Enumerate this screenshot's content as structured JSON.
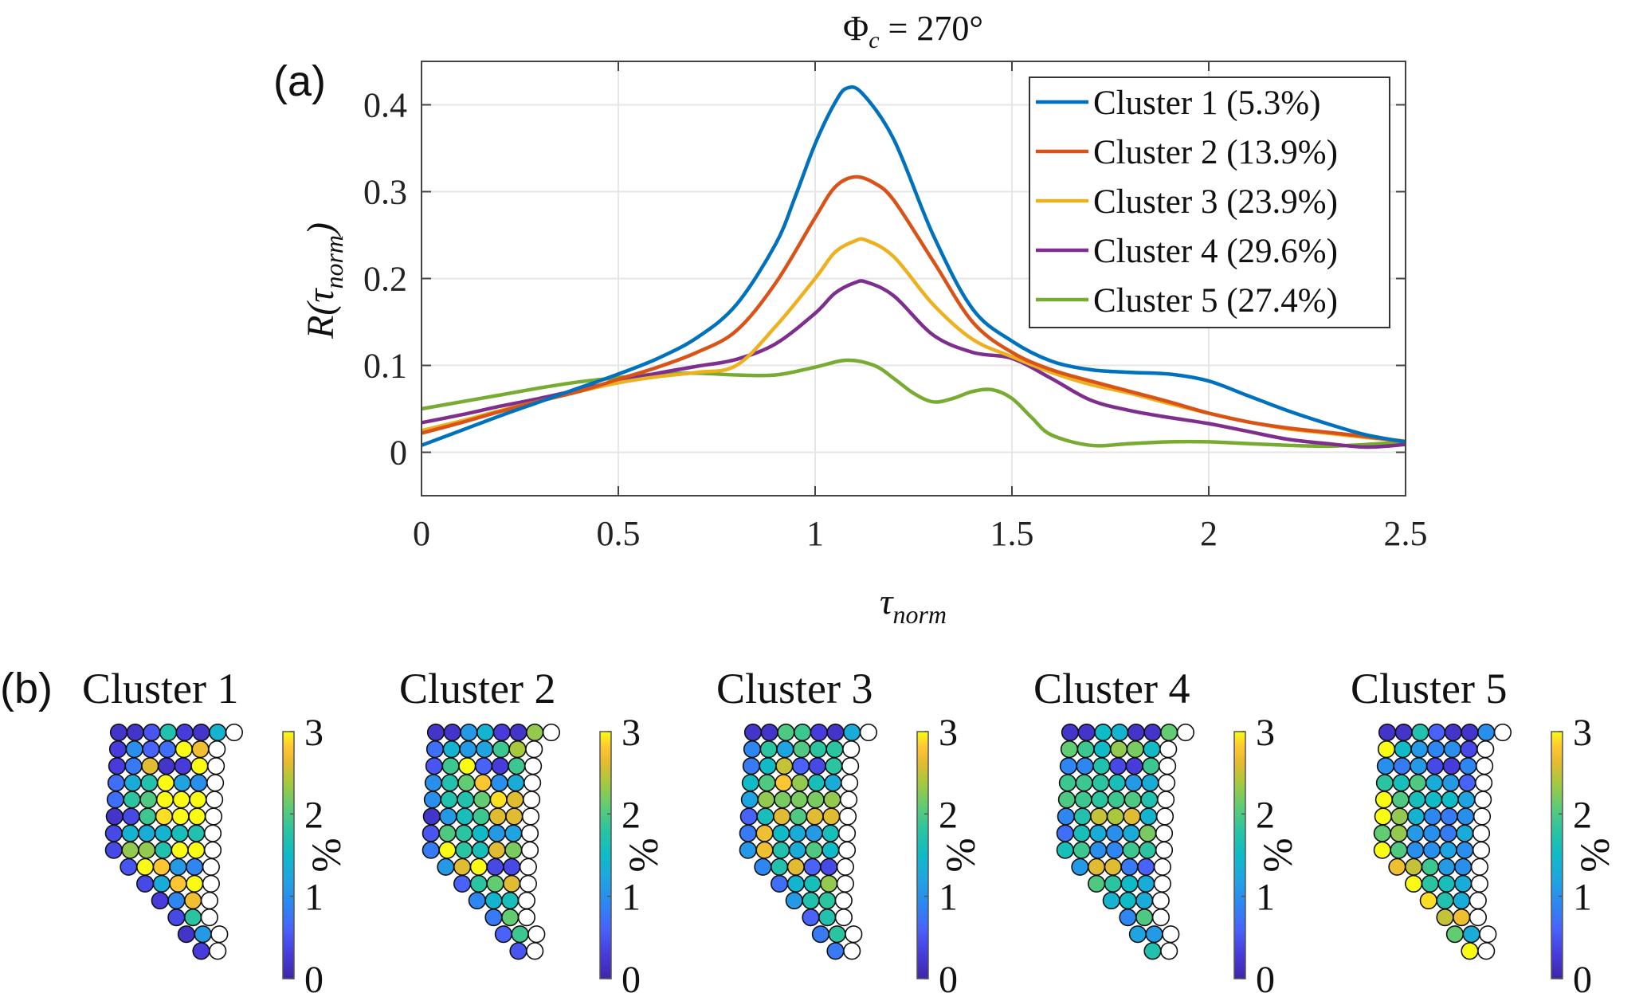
{
  "figure": {
    "panel_a_label": "(a)",
    "panel_b_label": "(b)"
  },
  "chart_data": [
    {
      "type": "line",
      "title": "Φc = 270°",
      "title_main": "Φ",
      "title_sub": "c",
      "title_rest": " = 270°",
      "xlabel": "τnorm",
      "xlabel_main": "τ",
      "xlabel_sub": "norm",
      "ylabel": "R(τnorm)",
      "ylabel_parts": {
        "pre": "R(",
        "tau": "τ",
        "sub": "norm",
        "post": ")"
      },
      "xlim": [
        0,
        2.5
      ],
      "ylim": [
        -0.05,
        0.45
      ],
      "xticks": [
        0,
        0.5,
        1,
        1.5,
        2,
        2.5
      ],
      "xtick_labels": [
        "0",
        "0.5",
        "1",
        "1.5",
        "2",
        "2.5"
      ],
      "yticks": [
        0,
        0.1,
        0.2,
        0.3,
        0.4
      ],
      "ytick_labels": [
        "0",
        "0.1",
        "0.2",
        "0.3",
        "0.4"
      ],
      "grid": true,
      "legend_position": "top-right",
      "series": [
        {
          "name": "Cluster 1 (5.3%)",
          "color": "#0072BD",
          "x": [
            0,
            0.1,
            0.2,
            0.3,
            0.4,
            0.5,
            0.6,
            0.7,
            0.8,
            0.9,
            0.95,
            1.0,
            1.05,
            1.08,
            1.12,
            1.2,
            1.3,
            1.4,
            1.5,
            1.6,
            1.7,
            1.8,
            1.9,
            2.0,
            2.1,
            2.2,
            2.3,
            2.4,
            2.5
          ],
          "y": [
            0.008,
            0.025,
            0.042,
            0.058,
            0.074,
            0.09,
            0.108,
            0.132,
            0.17,
            0.24,
            0.295,
            0.355,
            0.402,
            0.419,
            0.413,
            0.36,
            0.25,
            0.165,
            0.128,
            0.105,
            0.095,
            0.092,
            0.09,
            0.082,
            0.065,
            0.048,
            0.033,
            0.02,
            0.012
          ]
        },
        {
          "name": "Cluster 2 (13.9%)",
          "color": "#D95319",
          "x": [
            0,
            0.1,
            0.2,
            0.3,
            0.4,
            0.5,
            0.6,
            0.7,
            0.8,
            0.9,
            1.0,
            1.05,
            1.1,
            1.15,
            1.2,
            1.3,
            1.4,
            1.5,
            1.6,
            1.7,
            1.8,
            1.9,
            2.0,
            2.1,
            2.2,
            2.3,
            2.4,
            2.5
          ],
          "y": [
            0.022,
            0.034,
            0.047,
            0.059,
            0.07,
            0.084,
            0.098,
            0.115,
            0.14,
            0.195,
            0.27,
            0.305,
            0.317,
            0.31,
            0.29,
            0.22,
            0.15,
            0.115,
            0.095,
            0.082,
            0.07,
            0.058,
            0.045,
            0.035,
            0.028,
            0.023,
            0.018,
            0.012
          ]
        },
        {
          "name": "Cluster 3 (23.9%)",
          "color": "#EDB120",
          "x": [
            0,
            0.1,
            0.2,
            0.3,
            0.4,
            0.5,
            0.6,
            0.7,
            0.8,
            0.9,
            1.0,
            1.05,
            1.1,
            1.13,
            1.2,
            1.3,
            1.4,
            1.5,
            1.6,
            1.7,
            1.8,
            1.9,
            2.0,
            2.1,
            2.2,
            2.3,
            2.4,
            2.5
          ],
          "y": [
            0.025,
            0.036,
            0.048,
            0.059,
            0.07,
            0.08,
            0.087,
            0.092,
            0.1,
            0.145,
            0.2,
            0.23,
            0.243,
            0.244,
            0.225,
            0.17,
            0.13,
            0.11,
            0.092,
            0.078,
            0.068,
            0.056,
            0.045,
            0.035,
            0.027,
            0.022,
            0.017,
            0.013
          ]
        },
        {
          "name": "Cluster 4 (29.6%)",
          "color": "#7E2F8E",
          "x": [
            0,
            0.1,
            0.2,
            0.3,
            0.4,
            0.5,
            0.6,
            0.7,
            0.8,
            0.9,
            1.0,
            1.05,
            1.1,
            1.13,
            1.2,
            1.3,
            1.4,
            1.5,
            1.6,
            1.7,
            1.8,
            1.9,
            2.0,
            2.1,
            2.2,
            2.3,
            2.4,
            2.5
          ],
          "y": [
            0.034,
            0.043,
            0.053,
            0.062,
            0.072,
            0.082,
            0.091,
            0.099,
            0.107,
            0.125,
            0.16,
            0.183,
            0.195,
            0.196,
            0.18,
            0.135,
            0.115,
            0.108,
            0.085,
            0.06,
            0.048,
            0.04,
            0.033,
            0.024,
            0.015,
            0.01,
            0.006,
            0.009
          ]
        },
        {
          "name": "Cluster 5 (27.4%)",
          "color": "#77AC30",
          "x": [
            0,
            0.1,
            0.2,
            0.3,
            0.4,
            0.5,
            0.6,
            0.7,
            0.8,
            0.9,
            1.0,
            1.08,
            1.15,
            1.2,
            1.25,
            1.3,
            1.35,
            1.4,
            1.45,
            1.5,
            1.55,
            1.6,
            1.7,
            1.8,
            1.9,
            2.0,
            2.1,
            2.2,
            2.3,
            2.4,
            2.5
          ],
          "y": [
            0.05,
            0.058,
            0.066,
            0.074,
            0.081,
            0.086,
            0.09,
            0.091,
            0.089,
            0.089,
            0.098,
            0.106,
            0.1,
            0.085,
            0.068,
            0.058,
            0.062,
            0.07,
            0.072,
            0.062,
            0.04,
            0.02,
            0.008,
            0.01,
            0.012,
            0.012,
            0.01,
            0.008,
            0.007,
            0.009,
            0.012
          ]
        }
      ]
    },
    {
      "type": "heatmap",
      "subtype": "circle-grid maps",
      "colorbar": {
        "label": "%",
        "min": 0,
        "max": 3,
        "ticks": [
          "0",
          "1",
          "2",
          "3"
        ],
        "colormap": "parula"
      },
      "row_lengths": [
        7,
        6,
        6,
        6,
        6,
        6,
        6,
        6,
        5,
        4,
        3,
        2,
        2,
        1
      ],
      "empty_marker_color": "#ffffff",
      "panels": [
        {
          "title": "Cluster 1",
          "values": [
            [
              0.2,
              0.2,
              0.5,
              1.7,
              0.3,
              0.2,
              1.4
            ],
            [
              0.3,
              1.0,
              0.6,
              0.7,
              3.0,
              2.7
            ],
            [
              0.3,
              0.8,
              2.6,
              0.2,
              0.3,
              3.0
            ],
            [
              0.7,
              1.3,
              1.7,
              3.0,
              1.2,
              1.0
            ],
            [
              0.7,
              1.8,
              2.0,
              3.0,
              3.0,
              3.0
            ],
            [
              0.2,
              0.4,
              1.9,
              2.9,
              3.0,
              3.0
            ],
            [
              0.4,
              1.4,
              1.3,
              1.4,
              1.6,
              1.7
            ],
            [
              0.4,
              2.3,
              2.3,
              1.7,
              3.0,
              3.0
            ],
            [
              0.5,
              3.0,
              2.8,
              1.1,
              0.9
            ],
            [
              0.4,
              1.3,
              2.8,
              3.0
            ],
            [
              0.3,
              0.9,
              2.7
            ],
            [
              0.4,
              1.8
            ],
            [
              0.2,
              1.1
            ],
            [
              0.3
            ]
          ]
        },
        {
          "title": "Cluster 2",
          "values": [
            [
              0.2,
              0.2,
              1.1,
              1.4,
              0.3,
              0.2,
              2.3
            ],
            [
              0.7,
              1.4,
              1.1,
              1.2,
              1.9,
              2.4
            ],
            [
              0.5,
              1.9,
              3.0,
              0.6,
              0.3,
              1.9
            ],
            [
              1.0,
              1.7,
              2.1,
              2.8,
              1.0,
              1.3
            ],
            [
              1.0,
              1.7,
              1.7,
              2.1,
              2.9,
              2.6
            ],
            [
              0.2,
              1.1,
              1.6,
              1.9,
              2.6,
              2.6
            ],
            [
              0.5,
              2.0,
              1.8,
              1.5,
              1.1,
              1.2
            ],
            [
              0.8,
              3.0,
              1.8,
              1.6,
              2.6,
              2.2
            ],
            [
              1.1,
              2.6,
              3.0,
              0.4,
              0.4
            ],
            [
              0.6,
              1.8,
              2.1,
              2.6
            ],
            [
              0.9,
              1.4,
              1.6
            ],
            [
              0.8,
              2.1
            ],
            [
              0.6,
              1.9
            ],
            [
              0.5
            ]
          ]
        },
        {
          "title": "Cluster 3",
          "values": [
            [
              0.2,
              0.2,
              2.0,
              1.9,
              0.3,
              0.2,
              1.3
            ],
            [
              0.9,
              1.8,
              1.2,
              2.0,
              1.8,
              1.8
            ],
            [
              0.8,
              1.5,
              2.5,
              0.6,
              0.4,
              1.8
            ],
            [
              1.5,
              2.0,
              2.8,
              2.3,
              1.6,
              1.3
            ],
            [
              1.2,
              2.3,
              2.2,
              2.2,
              2.2,
              2.3
            ],
            [
              0.6,
              1.6,
              2.6,
              2.0,
              2.6,
              2.6
            ],
            [
              0.8,
              2.7,
              1.5,
              1.3,
              1.1,
              1.6
            ],
            [
              1.1,
              2.7,
              1.7,
              1.3,
              2.0,
              1.5
            ],
            [
              0.9,
              1.7,
              2.6,
              0.6,
              0.4
            ],
            [
              0.7,
              1.4,
              1.6,
              2.3
            ],
            [
              1.1,
              1.7,
              1.8
            ],
            [
              0.6,
              1.7
            ],
            [
              0.8,
              1.8
            ],
            [
              0.8
            ]
          ]
        },
        {
          "title": "Cluster 4",
          "values": [
            [
              0.2,
              0.2,
              1.5,
              1.4,
              0.2,
              0.2,
              2.1
            ],
            [
              2.1,
              1.9,
              1.5,
              2.3,
              2.2,
              1.5
            ],
            [
              0.9,
              0.9,
              1.7,
              0.4,
              0.3,
              1.9
            ],
            [
              1.9,
              1.9,
              1.8,
              1.6,
              1.1,
              1.3
            ],
            [
              2.0,
              1.9,
              1.8,
              1.9,
              2.0,
              1.7
            ],
            [
              0.9,
              1.7,
              2.5,
              2.4,
              2.6,
              1.4
            ],
            [
              0.7,
              1.6,
              1.3,
              1.0,
              1.3,
              2.2
            ],
            [
              1.6,
              1.9,
              1.0,
              0.9,
              1.9,
              1.8
            ],
            [
              1.1,
              2.6,
              2.6,
              0.8,
              0.6
            ],
            [
              2.0,
              1.8,
              1.5,
              1.3
            ],
            [
              1.4,
              1.5,
              1.3
            ],
            [
              0.9,
              2.0
            ],
            [
              1.2,
              1.1
            ],
            [
              1.7
            ]
          ]
        },
        {
          "title": "Cluster 5",
          "values": [
            [
              0.2,
              0.2,
              1.7,
              0.6,
              0.2,
              0.2,
              1.0
            ],
            [
              3.0,
              1.5,
              1.1,
              0.9,
              1.0,
              0.4
            ],
            [
              1.0,
              0.8,
              1.1,
              0.4,
              0.3,
              0.9
            ],
            [
              1.8,
              1.6,
              2.0,
              1.3,
              1.1,
              0.6
            ],
            [
              3.0,
              2.0,
              1.6,
              1.5,
              1.5,
              1.2
            ],
            [
              3.0,
              2.3,
              1.4,
              0.9,
              0.8,
              1.0
            ],
            [
              2.1,
              2.3,
              1.1,
              1.0,
              0.8,
              1.3
            ],
            [
              3.0,
              2.0,
              1.0,
              1.0,
              1.2,
              1.0
            ],
            [
              2.7,
              2.5,
              1.9,
              1.1,
              1.0
            ],
            [
              3.0,
              1.8,
              1.6,
              1.3
            ],
            [
              2.9,
              1.7,
              1.3
            ],
            [
              2.5,
              2.7
            ],
            [
              2.1,
              1.3
            ],
            [
              3.0
            ]
          ]
        }
      ]
    }
  ]
}
